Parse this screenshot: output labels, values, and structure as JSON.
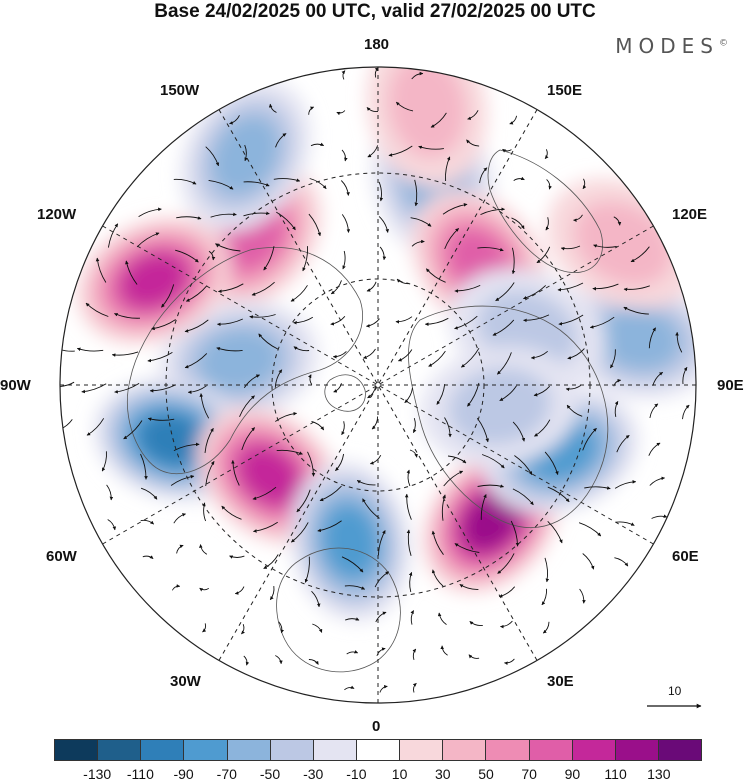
{
  "title": "Base 24/02/2025 00 UTC, valid 27/02/2025 00 UTC",
  "brand": "MODES",
  "brand_mark": "©",
  "longitude_labels": {
    "top": "180",
    "e150": "150E",
    "e120": "120E",
    "e90": "90E",
    "e60": "60E",
    "e30": "30E",
    "bottom": "0",
    "w30": "30W",
    "w60": "60W",
    "w90": "90W",
    "w120": "120W",
    "w150": "150W"
  },
  "reference_vector_label": "10",
  "colorbar": {
    "colors": [
      "#0d3a5c",
      "#1f5f8b",
      "#2f7fb8",
      "#4f9bd0",
      "#8cb4dc",
      "#bcc8e4",
      "#e4e4f2",
      "#ffffff",
      "#f8d8dc",
      "#f4b6c6",
      "#ee8cb4",
      "#e05ea8",
      "#c4289a",
      "#9a0f8a",
      "#6a0a78"
    ],
    "tick_labels": [
      "-130",
      "-110",
      "-90",
      "-70",
      "-50",
      "-30",
      "-10",
      "10",
      "30",
      "50",
      "70",
      "90",
      "110",
      "130"
    ]
  },
  "anomaly_centers": [
    {
      "lon": 165,
      "lat_deg": 60,
      "value": -60
    },
    {
      "lon": -140,
      "lat_deg": 55,
      "value": 80
    },
    {
      "lon": 140,
      "lat_deg": 45,
      "value": 80
    },
    {
      "lon": -100,
      "lat_deg": 40,
      "value": -60
    },
    {
      "lon": -115,
      "lat_deg": 70,
      "value": 100
    },
    {
      "lon": -75,
      "lat_deg": 60,
      "value": -90
    },
    {
      "lon": -50,
      "lat_deg": 40,
      "value": 100
    },
    {
      "lon": -10,
      "lat_deg": 45,
      "value": -80
    },
    {
      "lon": 40,
      "lat_deg": 50,
      "value": 110
    },
    {
      "lon": 70,
      "lat_deg": 55,
      "value": -80
    },
    {
      "lon": 100,
      "lat_deg": 75,
      "value": -50
    },
    {
      "lon": -150,
      "lat_deg": 75,
      "value": -50
    },
    {
      "lon": 170,
      "lat_deg": 80,
      "value": 30
    },
    {
      "lon": 120,
      "lat_deg": 80,
      "value": 30
    },
    {
      "lon": 110,
      "lat_deg": 45,
      "value": -30
    },
    {
      "lon": 80,
      "lat_deg": 35,
      "value": -30
    }
  ]
}
